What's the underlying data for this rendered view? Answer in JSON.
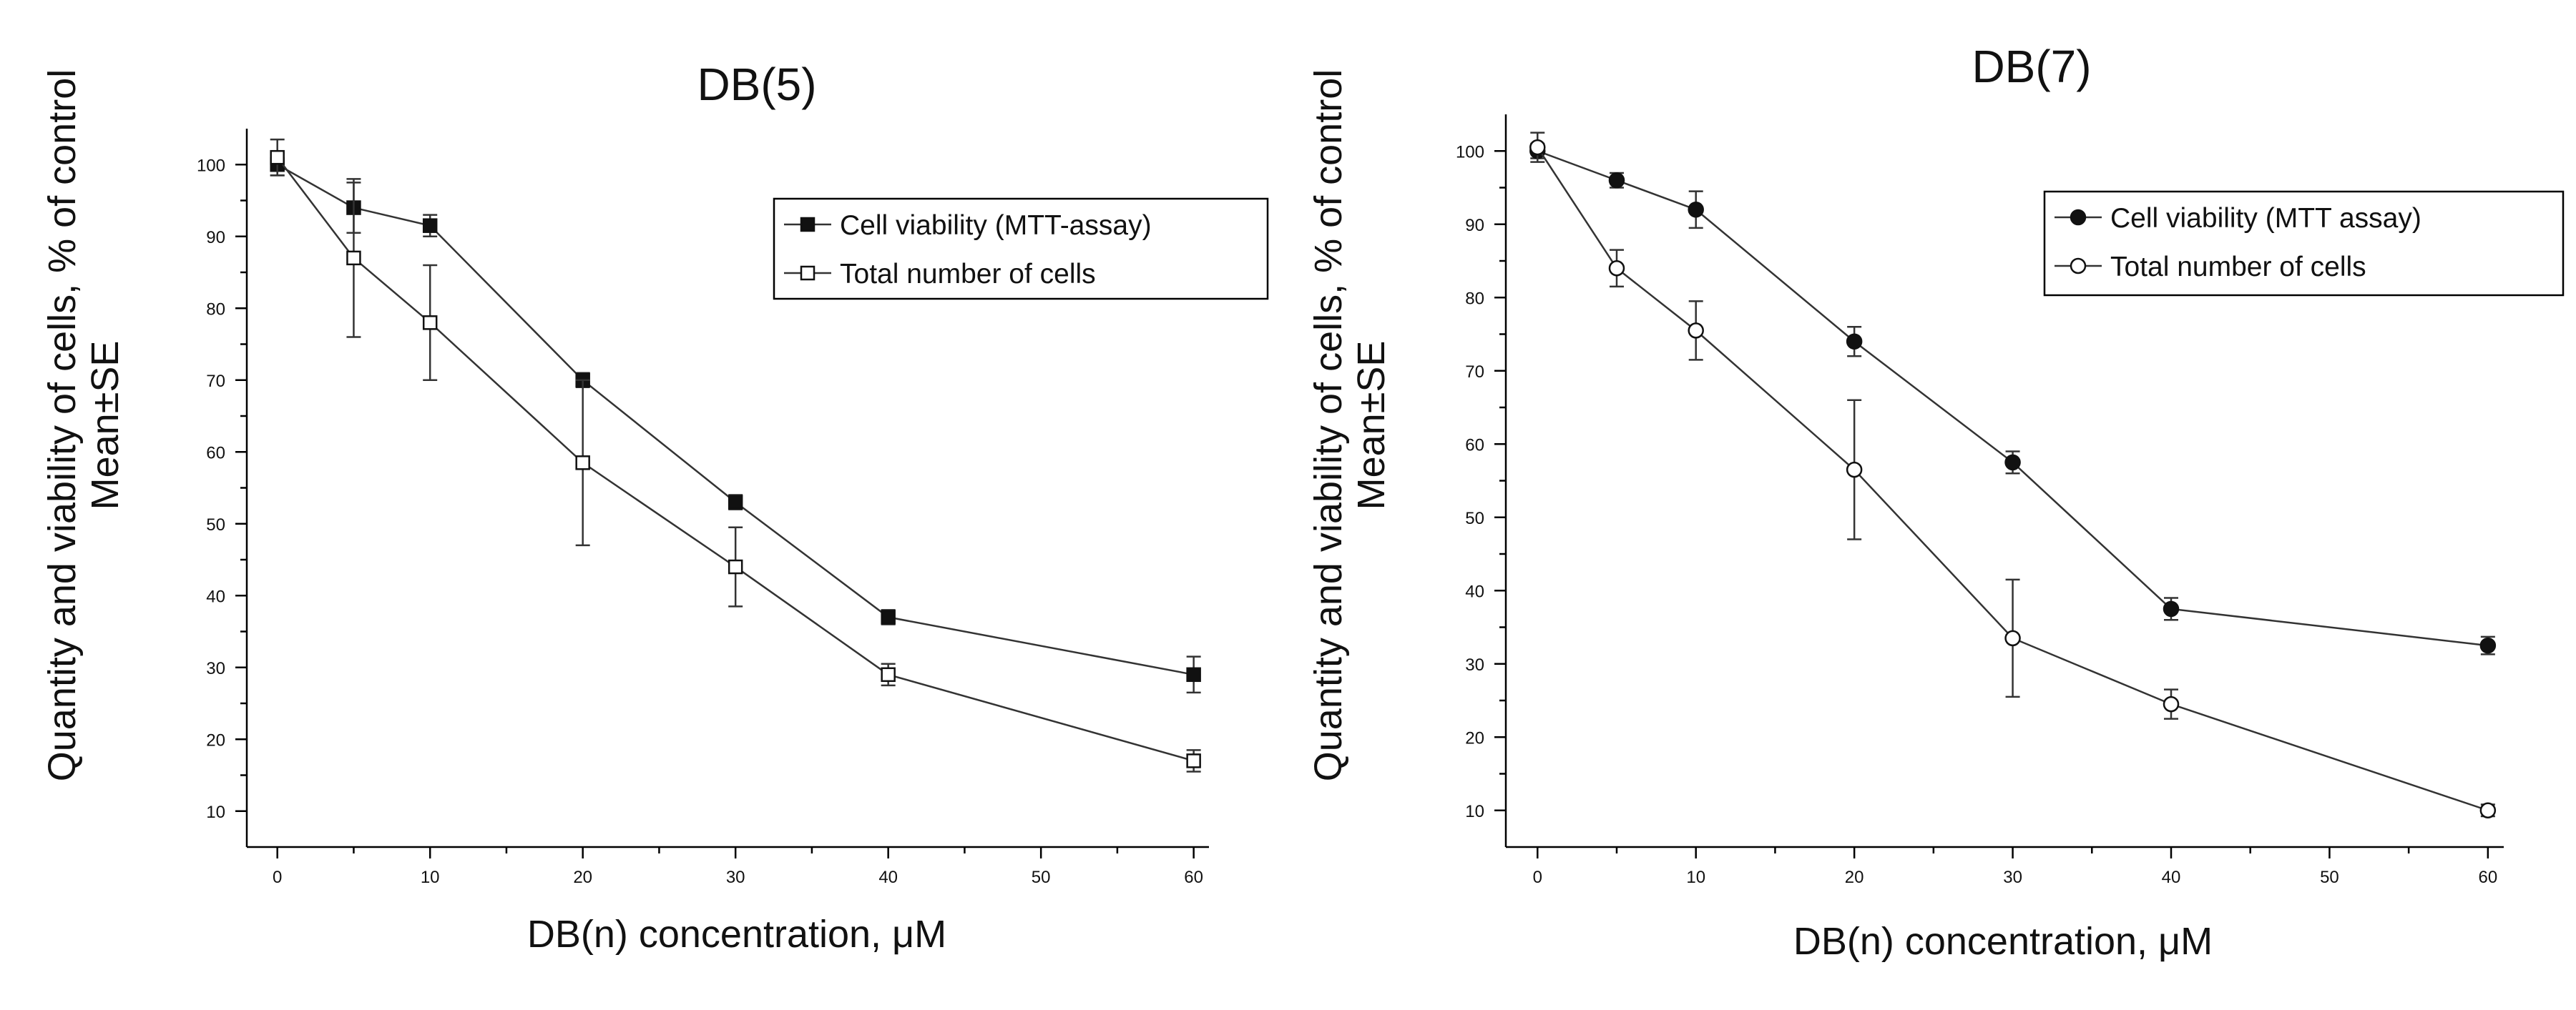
{
  "chart_data": [
    {
      "type": "line",
      "title": "DB(5)",
      "xlabel": "DB(n) concentration, μM",
      "ylabel": [
        "Quantity and viability of cells, % of control",
        "Mean±SE"
      ],
      "xlim": [
        -2,
        61
      ],
      "ylim": [
        5,
        105
      ],
      "xticks": [
        0,
        10,
        20,
        30,
        40,
        50,
        60
      ],
      "yticks": [
        10,
        20,
        30,
        40,
        50,
        60,
        70,
        80,
        90,
        100
      ],
      "legend_position": "top-right",
      "series": [
        {
          "name": "Cell viability (MTT-assay)",
          "marker": "filled-square",
          "x": [
            0,
            5,
            10,
            20,
            30,
            40,
            60
          ],
          "y": [
            100,
            94,
            91.5,
            70,
            53,
            37,
            29
          ],
          "err": [
            1.5,
            3.5,
            1.5,
            1,
            1,
            1,
            2.5
          ]
        },
        {
          "name": "Total number of cells",
          "marker": "open-square",
          "x": [
            0,
            5,
            10,
            20,
            30,
            40,
            60
          ],
          "y": [
            101,
            87,
            78,
            58.5,
            44,
            29,
            17
          ],
          "err": [
            2.5,
            11,
            8,
            11.5,
            5.5,
            1.5,
            1.5
          ]
        }
      ]
    },
    {
      "type": "line",
      "title": "DB(7)",
      "xlabel": "DB(n) concentration, μM",
      "ylabel": [
        "Quantity and viability of cells, % of control",
        "Mean±SE"
      ],
      "xlim": [
        -2,
        61
      ],
      "ylim": [
        5,
        105
      ],
      "xticks": [
        0,
        10,
        20,
        30,
        40,
        50,
        60
      ],
      "yticks": [
        10,
        20,
        30,
        40,
        50,
        60,
        70,
        80,
        90,
        100
      ],
      "legend_position": "top-right",
      "series": [
        {
          "name": "Cell viability (MTT assay)",
          "marker": "filled-circle",
          "x": [
            0,
            5,
            10,
            20,
            30,
            40,
            60
          ],
          "y": [
            100,
            96,
            92,
            74,
            57.5,
            37.5,
            32.5
          ],
          "err": [
            1,
            1,
            2.5,
            2,
            1.5,
            1.5,
            1.2
          ]
        },
        {
          "name": "Total number of cells",
          "marker": "open-circle",
          "x": [
            0,
            5,
            10,
            20,
            30,
            40,
            60
          ],
          "y": [
            100.5,
            84,
            75.5,
            56.5,
            33.5,
            24.5,
            10
          ],
          "err": [
            2,
            2.5,
            4,
            9.5,
            8,
            2,
            0.8
          ]
        }
      ]
    }
  ]
}
